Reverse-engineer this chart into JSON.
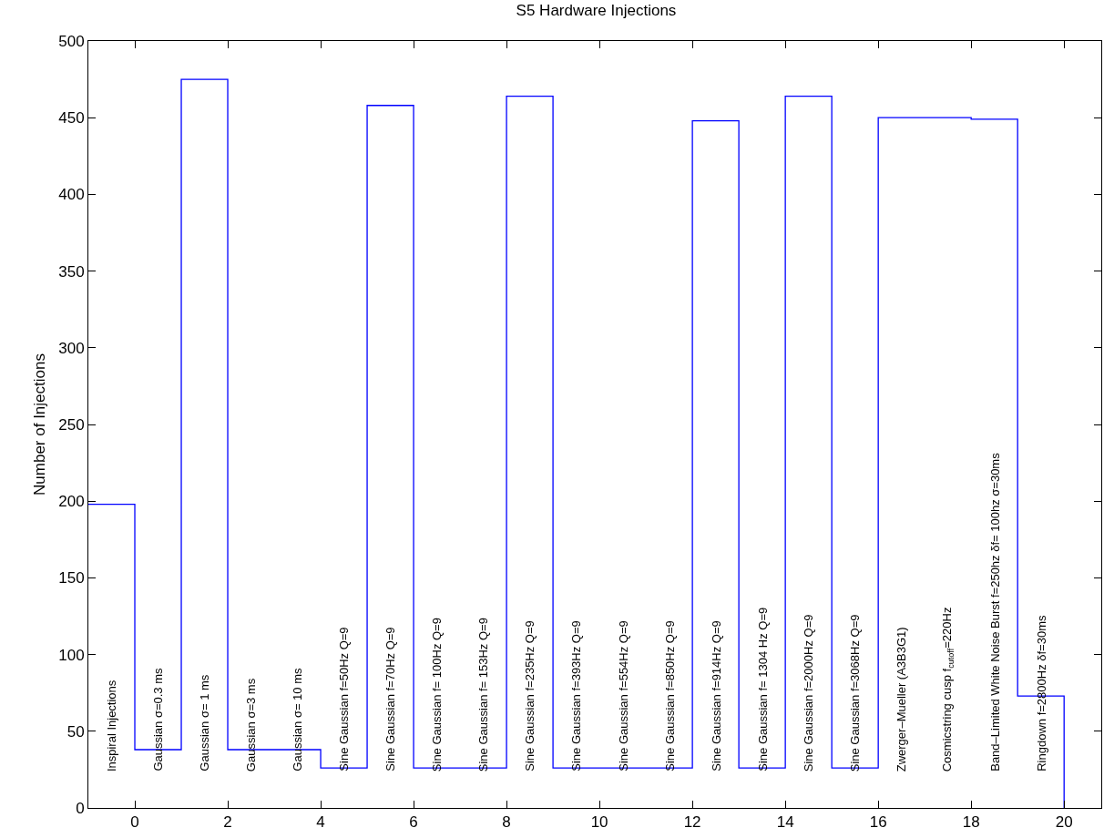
{
  "chart_data": {
    "type": "step",
    "title": "S5 Hardware Injections",
    "ylabel": "Number of Injections",
    "x": [
      -1,
      0,
      1,
      2,
      3,
      4,
      5,
      6,
      7,
      8,
      9,
      10,
      11,
      12,
      13,
      14,
      15,
      16,
      17,
      18,
      19,
      20
    ],
    "series": [
      {
        "color": "#0000ff",
        "values": [
          198,
          38,
          475,
          38,
          38,
          26,
          458,
          26,
          26,
          464,
          26,
          26,
          26,
          448,
          26,
          464,
          26,
          450,
          450,
          449,
          73,
          0
        ]
      }
    ],
    "xlim": [
      -1,
      20.8
    ],
    "ylim": [
      0,
      500
    ],
    "xticks": [
      0,
      2,
      4,
      6,
      8,
      10,
      12,
      14,
      16,
      18,
      20
    ],
    "yticks": [
      0,
      50,
      100,
      150,
      200,
      250,
      300,
      350,
      400,
      450,
      500
    ],
    "marker": "none",
    "line_style": "solid",
    "annotations": [
      "Inspiral Injections",
      "Gaussian σ=0.3 ms",
      "Gaussian σ= 1 ms",
      "Gaussian σ=3 ms",
      "Gaussian σ= 10 ms",
      "Sine Gaussian f=50Hz Q=9",
      "Sine Gaussian f=70Hz Q=9",
      "Sine Gaussian f= 100Hz Q=9",
      "Sine Gaussian f= 153Hz Q=9",
      "Sine Gaussian f=235Hz Q=9",
      "Sine Gaussian f=393Hz Q=9",
      "Sine Gaussian f=554Hz Q=9",
      "Sine Gaussian f=850Hz Q=9",
      "Sine Gaussian f=914Hz Q=9",
      "Sine Gaussian f= 1304 Hz Q=9",
      "Sine Gaussian f=2000Hz Q=9",
      "Sine Gaussian f=3068Hz Q=9",
      "Zwerger–Mueller (A3B3G1)",
      "Cosmicstring cusp f$_{cutoff}$=220Hz",
      "Band–Limited White Noise Burst f=250hz δf= 100hz σ=30ms",
      "Ringdown f=2800Hz δf=30ms"
    ]
  }
}
